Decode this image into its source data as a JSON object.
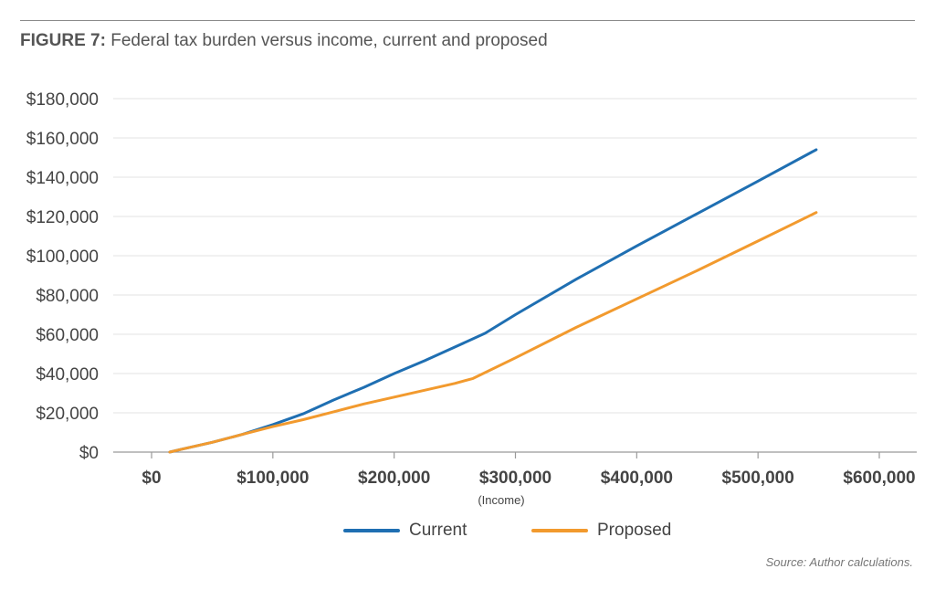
{
  "figure": {
    "label": "FIGURE 7:",
    "title": "Federal tax burden versus income, current and proposed",
    "source": "Source: Author calculations."
  },
  "chart_data": {
    "type": "line",
    "title": "Federal tax burden versus income, current and proposed",
    "xlabel": "(Income)",
    "ylabel": "",
    "xlim": [
      0,
      600000
    ],
    "ylim": [
      0,
      180000
    ],
    "x_ticks": [
      0,
      100000,
      200000,
      300000,
      400000,
      500000,
      600000
    ],
    "x_tick_labels": [
      "$0",
      "$100,000",
      "$200,000",
      "$300,000",
      "$400,000",
      "$500,000",
      "$600,000"
    ],
    "y_ticks": [
      0,
      20000,
      40000,
      60000,
      80000,
      100000,
      120000,
      140000,
      160000,
      180000
    ],
    "y_tick_labels": [
      "$0",
      "$20,000",
      "$40,000",
      "$60,000",
      "$80,000",
      "$100,000",
      "$120,000",
      "$140,000",
      "$160,000",
      "$180,000"
    ],
    "grid": "horizontal",
    "legend_position": "bottom",
    "series": [
      {
        "name": "Current",
        "color": "#1f6fb2",
        "points": [
          [
            15000,
            0
          ],
          [
            25000,
            1500
          ],
          [
            50000,
            5000
          ],
          [
            75000,
            9000
          ],
          [
            100000,
            14000
          ],
          [
            125000,
            19500
          ],
          [
            150000,
            26500
          ],
          [
            175000,
            33000
          ],
          [
            200000,
            40000
          ],
          [
            225000,
            46500
          ],
          [
            250000,
            53500
          ],
          [
            275000,
            60500
          ],
          [
            300000,
            70000
          ],
          [
            350000,
            88000
          ],
          [
            400000,
            105000
          ],
          [
            450000,
            121500
          ],
          [
            500000,
            138000
          ],
          [
            548000,
            154000
          ]
        ]
      },
      {
        "name": "Proposed",
        "color": "#f29a2e",
        "points": [
          [
            15000,
            0
          ],
          [
            25000,
            1500
          ],
          [
            50000,
            5000
          ],
          [
            75000,
            9000
          ],
          [
            100000,
            13000
          ],
          [
            125000,
            16500
          ],
          [
            150000,
            20500
          ],
          [
            175000,
            24500
          ],
          [
            200000,
            28000
          ],
          [
            225000,
            31500
          ],
          [
            250000,
            35000
          ],
          [
            265000,
            37500
          ],
          [
            300000,
            48000
          ],
          [
            350000,
            63500
          ],
          [
            400000,
            78000
          ],
          [
            450000,
            92500
          ],
          [
            500000,
            107500
          ],
          [
            548000,
            122000
          ]
        ]
      }
    ]
  }
}
